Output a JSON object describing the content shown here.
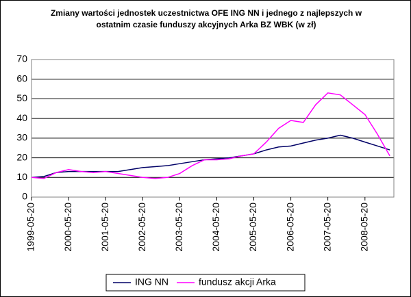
{
  "chart_data": {
    "type": "line",
    "title": "Zmiany wartości jednostek uczestnictwa OFE ING NN i jednego z najlepszych w ostatnim czasie funduszy akcyjnych Arka BZ WBK (w zł)",
    "x": [
      "1999-05-20",
      "1999-09-20",
      "2000-01-20",
      "2000-05-20",
      "2000-09-20",
      "2001-01-20",
      "2001-05-20",
      "2001-09-20",
      "2002-01-20",
      "2002-05-20",
      "2002-09-20",
      "2003-01-20",
      "2003-05-20",
      "2003-09-20",
      "2004-01-20",
      "2004-05-20",
      "2004-09-20",
      "2005-01-20",
      "2005-05-20",
      "2005-09-20",
      "2006-01-20",
      "2006-05-20",
      "2006-09-20",
      "2007-01-20",
      "2007-05-20",
      "2007-09-20",
      "2008-01-20",
      "2008-05-20",
      "2008-09-20",
      "2009-01-20"
    ],
    "series": [
      {
        "name": "ING NN",
        "color": "#000066",
        "values": [
          10,
          10.5,
          12.5,
          13,
          13,
          13,
          13,
          13,
          14,
          15,
          15.5,
          16,
          17,
          18,
          19,
          19.5,
          20,
          21,
          22,
          24,
          25.5,
          26,
          27.5,
          29,
          30,
          31.5,
          30,
          28,
          26,
          24
        ]
      },
      {
        "name": "fundusz akcji Arka",
        "color": "#ff00ff",
        "values": [
          10,
          9.5,
          12.5,
          14,
          13,
          12.5,
          13,
          12,
          11,
          10,
          9.5,
          10,
          12,
          16,
          19,
          19,
          19.5,
          21,
          22,
          28,
          35,
          39,
          38,
          47,
          53,
          52,
          47,
          42,
          32,
          21
        ]
      }
    ],
    "xlim": [
      "1999-05-20",
      "2009-03-01"
    ],
    "xticks": [
      "1999-05-20",
      "2000-05-20",
      "2001-05-20",
      "2002-05-20",
      "2003-05-20",
      "2004-05-20",
      "2005-05-20",
      "2006-05-20",
      "2007-05-20",
      "2008-05-20"
    ],
    "ylim": [
      0,
      70
    ],
    "yticks": [
      0,
      10,
      20,
      30,
      40,
      50,
      60,
      70
    ],
    "grid": true,
    "legend": "bottom"
  }
}
